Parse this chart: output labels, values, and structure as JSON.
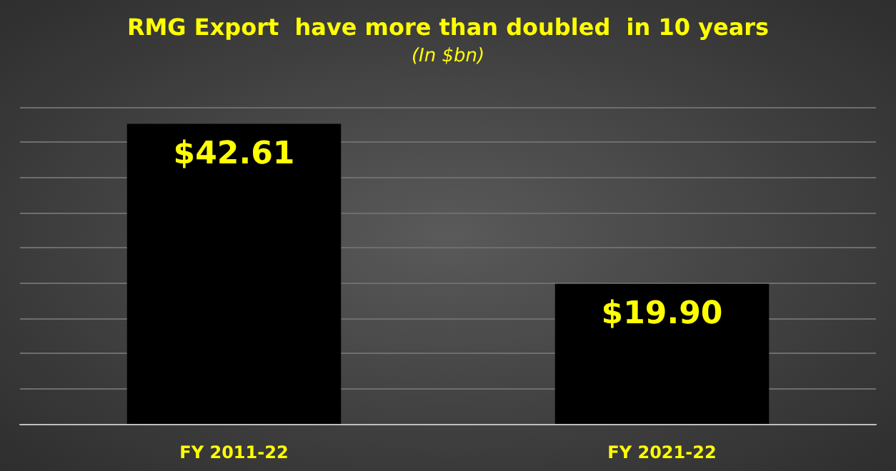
{
  "chart_data": {
    "type": "bar",
    "title": "RMG Export  have more than doubled  in 10 years",
    "subtitle": "(In $bn)",
    "categories": [
      "FY 2011-22",
      "FY 2021-22"
    ],
    "values": [
      42.61,
      19.9
    ],
    "color": "#000000",
    "value_labels": [
      "$42.61",
      "$19.90"
    ],
    "ylim": [
      0,
      45
    ],
    "yticks": [
      {
        "value": 0,
        "label": null
      },
      {
        "value": 5,
        "label": null
      },
      {
        "value": 10,
        "label": null
      },
      {
        "value": 15,
        "label": null
      },
      {
        "value": 20,
        "label": null
      },
      {
        "value": 25,
        "label": null
      },
      {
        "value": 30,
        "label": null
      },
      {
        "value": 35,
        "label": null
      },
      {
        "value": 40,
        "label": null
      },
      {
        "value": 45,
        "label": null
      }
    ],
    "grid": "y",
    "tick_labels": "x"
  }
}
